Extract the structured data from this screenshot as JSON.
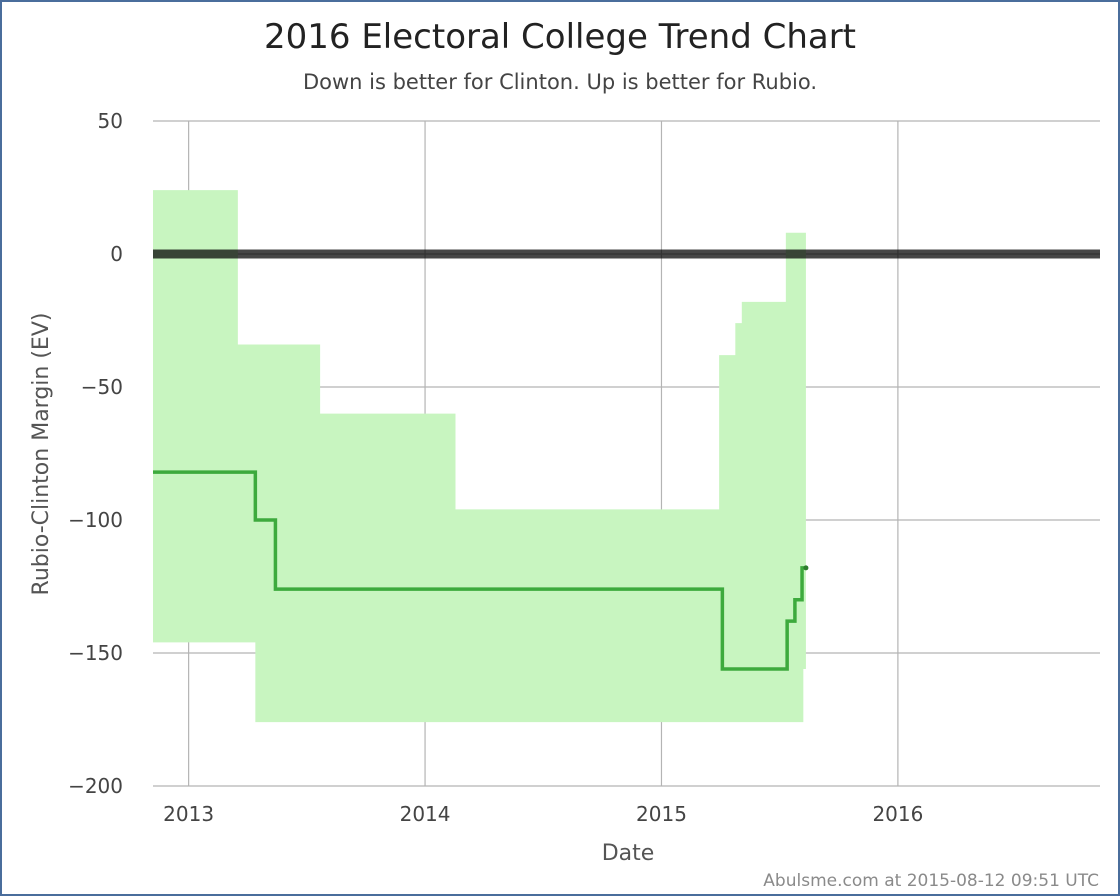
{
  "chart_data": {
    "type": "line",
    "title": "2016 Electoral College Trend Chart",
    "subtitle": "Down is better for Clinton. Up is better for Rubio.",
    "xlabel": "Date",
    "ylabel": "Rubio-Clinton Margin (EV)",
    "xlim": [
      "2012-11-07",
      "2016-11-08"
    ],
    "ylim": [
      -200,
      50
    ],
    "x_ticks": [
      "2013",
      "2014",
      "2015",
      "2016"
    ],
    "y_ticks": [
      "50",
      "0",
      "−50",
      "−100",
      "−150",
      "−200"
    ],
    "grid": true,
    "reference_line_y": 0,
    "colors": {
      "line": "#3daa3d",
      "band": "#c8f5c0",
      "zero_line": "#000000",
      "grid": "#b4b4b4"
    },
    "series": [
      {
        "type": "step",
        "points": [
          {
            "date": "2012-11-07",
            "value": -82
          },
          {
            "date": "2013-04-14",
            "value": -100
          },
          {
            "date": "2013-05-15",
            "value": -126
          },
          {
            "date": "2015-04-05",
            "value": -156
          },
          {
            "date": "2015-07-14",
            "value": -138
          },
          {
            "date": "2015-07-26",
            "value": -130
          },
          {
            "date": "2015-08-06",
            "value": -118
          },
          {
            "date": "2015-08-12",
            "value": -118
          }
        ]
      },
      {
        "type": "range",
        "points": [
          {
            "date": "2012-11-07",
            "low": -146,
            "high": 24
          },
          {
            "date": "2013-03-18",
            "low": -146,
            "high": -34
          },
          {
            "date": "2013-04-14",
            "low": -176,
            "high": -34
          },
          {
            "date": "2013-07-23",
            "low": -176,
            "high": -60
          },
          {
            "date": "2014-02-17",
            "low": -176,
            "high": -96
          },
          {
            "date": "2015-03-31",
            "low": -176,
            "high": -38
          },
          {
            "date": "2015-04-25",
            "low": -176,
            "high": -26
          },
          {
            "date": "2015-05-05",
            "low": -176,
            "high": -18
          },
          {
            "date": "2015-07-12",
            "low": -176,
            "high": 8
          },
          {
            "date": "2015-08-08",
            "low": -156,
            "high": 8
          },
          {
            "date": "2015-08-12",
            "low": -156,
            "high": 8
          }
        ]
      }
    ]
  },
  "credit": "Abulsme.com at 2015-08-12 09:51 UTC"
}
